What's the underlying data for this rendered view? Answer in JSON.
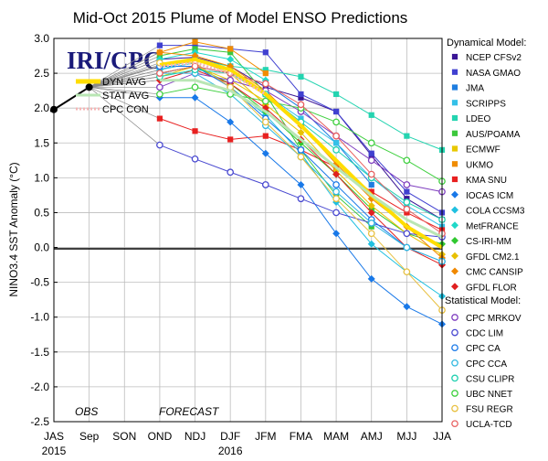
{
  "chart_data": {
    "type": "line",
    "title": "Mid-Oct 2015 Plume of Model ENSO Predictions",
    "ylabel": "NINO3.4 SST Anomaly (°C)",
    "xlabel": "",
    "ylim": [
      -2.5,
      3.0
    ],
    "yticks": [
      -2.5,
      -2.0,
      -1.5,
      -1.0,
      -0.5,
      0.0,
      0.5,
      1.0,
      1.5,
      2.0,
      2.5,
      3.0
    ],
    "ytick_labels": [
      "-2.5",
      "-2.0",
      "-1.5",
      "-1.0",
      "-0.5",
      "0.0",
      "0.5",
      "1.0",
      "1.5",
      "2.0",
      "2.5",
      "3.0"
    ],
    "categories": [
      "JAS",
      "Sep",
      "SON",
      "OND",
      "NDJ",
      "DJF",
      "JFM",
      "FMA",
      "MAM",
      "AMJ",
      "MJJ",
      "JJA"
    ],
    "year_labels": [
      {
        "label": "2015",
        "at": "JAS"
      },
      {
        "label": "2016",
        "at": "DJF"
      }
    ],
    "grid": true,
    "zero_line": true,
    "logo": "IRI/CPC",
    "region_labels": {
      "obs": "OBS",
      "forecast": "FORECAST"
    },
    "observations": {
      "x": [
        "JAS",
        "Sep"
      ],
      "values": [
        1.98,
        2.3
      ],
      "color": "#000000"
    },
    "legend": {
      "dynamical_header": "Dynamical Model:",
      "statistical_header": "Statistical Model:",
      "averages": [
        {
          "name": "DYN AVG",
          "color": "#ffdd00"
        },
        {
          "name": "STAT AVG",
          "color": "#b9e6b4"
        },
        {
          "name": "CPC CON",
          "color": "#f4b5b5"
        }
      ]
    },
    "series": [
      {
        "name": "NCEP CFSv2",
        "group": "dynamical",
        "marker": "square",
        "color": "#3a1596",
        "values": [
          null,
          null,
          null,
          2.7,
          2.73,
          2.6,
          2.3,
          2.15,
          1.95,
          1.32,
          0.7,
          0.4
        ]
      },
      {
        "name": "NASA GMAO",
        "group": "dynamical",
        "marker": "square",
        "color": "#4040d0",
        "values": [
          null,
          null,
          null,
          2.9,
          2.9,
          2.85,
          2.8,
          2.2,
          1.95,
          1.35,
          0.8,
          0.5
        ]
      },
      {
        "name": "JMA",
        "group": "dynamical",
        "marker": "square",
        "color": "#1e7de0",
        "values": [
          null,
          null,
          null,
          2.5,
          2.6,
          2.5,
          2.35,
          2.0,
          1.5,
          0.9,
          null,
          null
        ]
      },
      {
        "name": "SCRIPPS",
        "group": "dynamical",
        "marker": "square",
        "color": "#34c0e8",
        "values": [
          null,
          null,
          null,
          2.55,
          2.7,
          2.55,
          2.2,
          1.85,
          1.5,
          1.0,
          0.6,
          0.3
        ]
      },
      {
        "name": "LDEO",
        "group": "dynamical",
        "marker": "square",
        "color": "#24d4b0",
        "values": [
          null,
          null,
          null,
          2.6,
          2.7,
          2.6,
          2.55,
          2.45,
          2.2,
          1.9,
          1.6,
          1.4
        ]
      },
      {
        "name": "AUS/POAMA",
        "group": "dynamical",
        "marker": "square",
        "color": "#3cc83c",
        "values": [
          null,
          null,
          null,
          2.75,
          2.85,
          2.8,
          2.2,
          1.4,
          0.75,
          0.3,
          null,
          null
        ]
      },
      {
        "name": "ECMWF",
        "group": "dynamical",
        "marker": "square",
        "color": "#e8c800",
        "values": [
          null,
          null,
          null,
          2.45,
          2.6,
          2.4,
          2.1,
          null,
          null,
          null,
          null,
          null
        ]
      },
      {
        "name": "UKMO",
        "group": "dynamical",
        "marker": "square",
        "color": "#f08c00",
        "values": [
          null,
          null,
          null,
          2.8,
          2.95,
          2.85,
          2.5,
          null,
          null,
          null,
          null,
          null
        ]
      },
      {
        "name": "KMA SNU",
        "group": "dynamical",
        "marker": "square",
        "color": "#e82020",
        "values": [
          null,
          null,
          null,
          1.85,
          1.67,
          1.55,
          1.6,
          1.4,
          1.15,
          0.8,
          0.5,
          0.25
        ]
      },
      {
        "name": "IOCAS ICM",
        "group": "dynamical",
        "marker": "diamond",
        "color": "#1878e8",
        "values": [
          null,
          null,
          null,
          2.15,
          2.15,
          1.8,
          1.35,
          0.9,
          0.2,
          -0.45,
          -0.85,
          -1.1
        ]
      },
      {
        "name": "COLA CCSM3",
        "group": "dynamical",
        "marker": "diamond",
        "color": "#20c0e0",
        "values": [
          null,
          null,
          null,
          2.55,
          2.65,
          2.3,
          1.9,
          1.35,
          0.65,
          0.05,
          -0.35,
          -0.7
        ]
      },
      {
        "name": "MetFRANCE",
        "group": "dynamical",
        "marker": "diamond",
        "color": "#20d8c8",
        "values": [
          null,
          null,
          null,
          2.7,
          2.8,
          2.7,
          2.4,
          null,
          null,
          null,
          null,
          null
        ]
      },
      {
        "name": "CS-IRI-MM",
        "group": "dynamical",
        "marker": "diamond",
        "color": "#30c830",
        "values": [
          null,
          null,
          null,
          2.5,
          2.6,
          2.35,
          1.95,
          1.5,
          1.05,
          0.55,
          0.2,
          0.05
        ]
      },
      {
        "name": "GFDL CM2.1",
        "group": "dynamical",
        "marker": "diamond",
        "color": "#e8c000",
        "values": [
          null,
          null,
          null,
          2.6,
          2.7,
          2.5,
          2.05,
          1.65,
          1.1,
          0.6,
          0.2,
          -0.1
        ]
      },
      {
        "name": "CMC CANSIP",
        "group": "dynamical",
        "marker": "diamond",
        "color": "#f08800",
        "values": [
          null,
          null,
          null,
          2.8,
          2.75,
          2.6,
          2.25,
          1.75,
          1.2,
          0.7,
          0.3,
          -0.15
        ]
      },
      {
        "name": "GFDL FLOR",
        "group": "dynamical",
        "marker": "diamond",
        "color": "#e02020",
        "values": [
          null,
          null,
          null,
          2.4,
          2.55,
          2.35,
          2.0,
          1.55,
          1.05,
          0.5,
          0.0,
          -0.25
        ]
      },
      {
        "name": "CPC MRKOV",
        "group": "statistical",
        "marker": "circle",
        "color": "#8040c0",
        "values": [
          null,
          null,
          null,
          2.3,
          2.5,
          2.4,
          2.25,
          1.95,
          1.6,
          1.25,
          0.9,
          0.8
        ]
      },
      {
        "name": "CDC LIM",
        "group": "statistical",
        "marker": "circle",
        "color": "#4848d0",
        "values": [
          null,
          null,
          null,
          1.47,
          1.27,
          1.08,
          0.9,
          0.7,
          0.5,
          0.35,
          0.2,
          0.15
        ]
      },
      {
        "name": "CPC CA",
        "group": "statistical",
        "marker": "circle",
        "color": "#1878e8",
        "values": [
          null,
          null,
          null,
          2.6,
          2.6,
          2.3,
          1.85,
          1.4,
          0.9,
          0.4,
          0.0,
          -0.2
        ]
      },
      {
        "name": "CPC CCA",
        "group": "statistical",
        "marker": "circle",
        "color": "#30b8e0",
        "values": [
          null,
          null,
          null,
          2.5,
          2.5,
          2.2,
          1.75,
          1.3,
          0.8,
          0.35,
          0.0,
          -0.2
        ]
      },
      {
        "name": "CSU CLIPR",
        "group": "statistical",
        "marker": "circle",
        "color": "#20d0b0",
        "values": [
          null,
          null,
          null,
          2.45,
          2.55,
          2.5,
          2.2,
          1.8,
          1.4,
          1.0,
          0.65,
          0.4
        ]
      },
      {
        "name": "UBC NNET",
        "group": "statistical",
        "marker": "circle",
        "color": "#40d040",
        "values": [
          null,
          null,
          null,
          2.2,
          2.3,
          2.2,
          2.1,
          2.0,
          1.8,
          1.5,
          1.25,
          0.95
        ]
      },
      {
        "name": "FSU REGR",
        "group": "statistical",
        "marker": "circle",
        "color": "#e8c040",
        "values": [
          null,
          null,
          null,
          2.65,
          2.65,
          2.3,
          1.8,
          1.3,
          0.7,
          0.2,
          -0.35,
          -0.9
        ]
      },
      {
        "name": "UCLA-TCD",
        "group": "statistical",
        "marker": "circle",
        "color": "#e86060",
        "values": [
          null,
          null,
          null,
          2.5,
          2.6,
          2.5,
          2.35,
          2.05,
          1.6,
          1.05,
          0.55,
          0.2
        ]
      }
    ],
    "averages": [
      {
        "name": "DYN AVG",
        "color": "#ffdd00",
        "values": [
          null,
          null,
          null,
          2.62,
          2.7,
          2.55,
          2.2,
          1.75,
          1.25,
          0.75,
          0.3,
          0.0
        ]
      },
      {
        "name": "STAT AVG",
        "color": "#b9e6b4",
        "values": [
          null,
          null,
          null,
          2.4,
          2.4,
          2.25,
          1.95,
          1.55,
          1.15,
          0.75,
          0.4,
          0.15
        ]
      },
      {
        "name": "CPC CON",
        "color": "#f4b5b5",
        "values": [
          null,
          null,
          null,
          2.6,
          2.65,
          2.5,
          2.2,
          null,
          null,
          null,
          null,
          null
        ]
      }
    ]
  }
}
